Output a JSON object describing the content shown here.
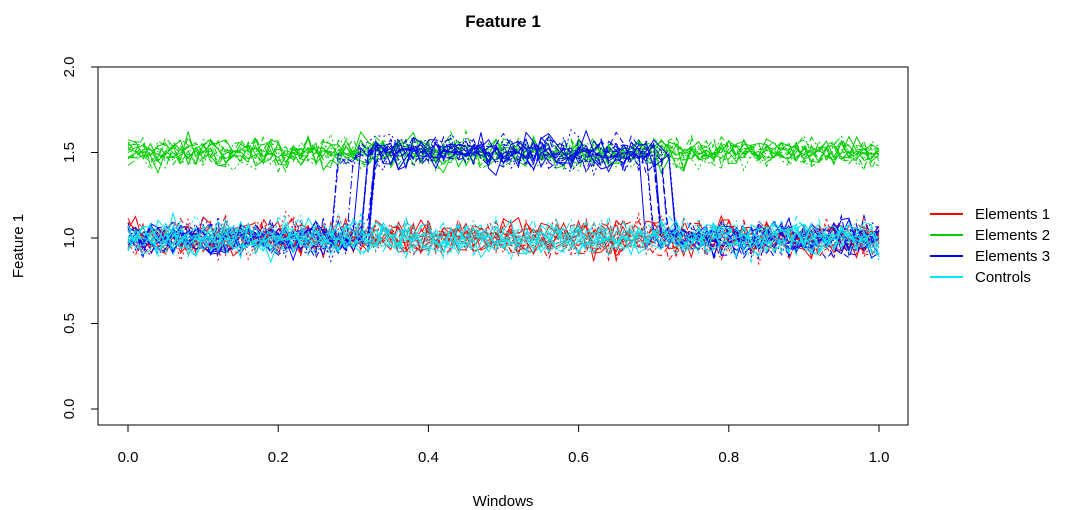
{
  "chart_data": {
    "type": "line",
    "title": "Feature 1",
    "xlabel": "Windows",
    "ylabel": "Feature 1",
    "xlim": [
      0,
      1
    ],
    "ylim": [
      0,
      2
    ],
    "x_ticks": [
      "0.0",
      "0.2",
      "0.4",
      "0.6",
      "0.8",
      "1.0"
    ],
    "y_ticks": [
      "0.0",
      "0.5",
      "1.0",
      "1.5",
      "2.0"
    ],
    "grid": false,
    "legend_position": "right",
    "x": [
      0.0,
      0.1,
      0.2,
      0.3,
      0.4,
      0.5,
      0.6,
      0.7,
      0.8,
      0.9,
      1.0
    ],
    "series": [
      {
        "name": "Elements 1",
        "color": "#ff0000",
        "values": [
          1.0,
          1.0,
          1.0,
          1.0,
          1.0,
          1.0,
          1.0,
          1.0,
          1.0,
          1.0,
          1.0
        ]
      },
      {
        "name": "Elements 2",
        "color": "#00cd00",
        "values": [
          1.5,
          1.5,
          1.5,
          1.5,
          1.5,
          1.5,
          1.5,
          1.5,
          1.5,
          1.5,
          1.5
        ]
      },
      {
        "name": "Elements 3",
        "color": "#0000ff",
        "values": [
          1.0,
          1.0,
          1.0,
          1.5,
          1.5,
          1.5,
          1.5,
          1.0,
          1.0,
          1.0,
          1.0
        ]
      },
      {
        "name": "Controls",
        "color": "#00e5ee",
        "values": [
          1.0,
          1.0,
          1.0,
          1.0,
          1.0,
          1.0,
          1.0,
          1.0,
          1.0,
          1.0,
          1.0
        ]
      }
    ]
  }
}
